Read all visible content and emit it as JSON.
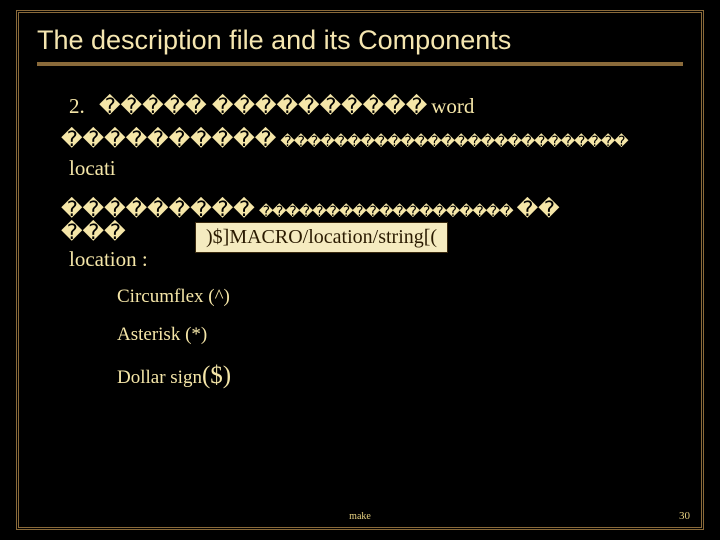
{
  "slide": {
    "title": "The description file and its Components",
    "list_number": "2.",
    "row1_boxes": "����� ����������",
    "row1_word": "word",
    "row2_boxes_a": "����������",
    "row2_boxes_b": "��������������������������",
    "locstr_prefix": "locati",
    "callout": ")$]MACRO/location/string[(",
    "row4_boxes_a": "���������",
    "row4_boxes_b": "�������������������",
    "row4_boxes_c": "��",
    "row5_boxes": "���",
    "location_label": "location :",
    "bullets": {
      "b1": "Circumflex (^)",
      "b2": "Asterisk (*)",
      "b3_a": "Dollar sign",
      "b3_b": "($)"
    },
    "footer_center": "make",
    "footer_page": "30"
  },
  "colors": {
    "background": "#000000",
    "text": "#f5e6a8",
    "frame": "#8a6a3a",
    "callout_bg": "#f5ebc0",
    "callout_fg": "#2a1a00"
  }
}
